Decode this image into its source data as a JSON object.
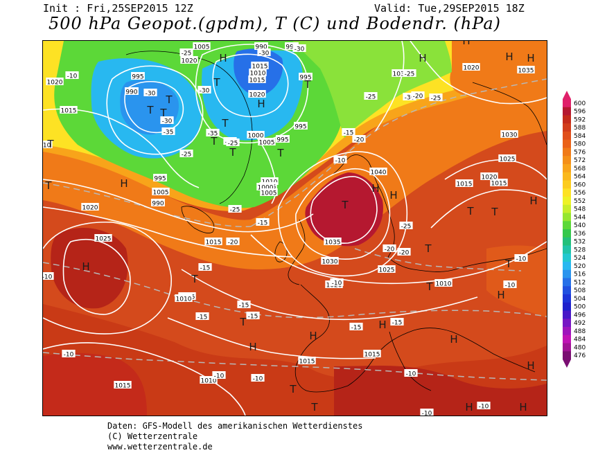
{
  "header": {
    "init": "Init : Fri,25SEP2015 12Z",
    "valid": "Valid: Tue,29SEP2015 18Z",
    "title": "500 hPa Geopot.(gpdm), T (C) und Bodendr. (hPa)"
  },
  "footer": {
    "line1": "Daten: GFS-Modell des amerikanischen Wetterdienstes",
    "line2": "(C) Wetterzentrale",
    "line3": "www.wetterzentrale.de"
  },
  "legend": {
    "values": [
      "600",
      "596",
      "592",
      "588",
      "584",
      "580",
      "576",
      "572",
      "568",
      "564",
      "560",
      "556",
      "552",
      "548",
      "544",
      "540",
      "536",
      "532",
      "528",
      "524",
      "520",
      "516",
      "512",
      "508",
      "504",
      "500",
      "496",
      "492",
      "488",
      "484",
      "480",
      "476"
    ],
    "colors": [
      "#e0206a",
      "#b51830",
      "#c42a1a",
      "#d23c1a",
      "#e04e1a",
      "#ea6218",
      "#f07a18",
      "#f48f18",
      "#f8a41a",
      "#fab81c",
      "#fccc1e",
      "#fde224",
      "#eef226",
      "#c8ee2a",
      "#96e630",
      "#5cd838",
      "#34c84c",
      "#22c07a",
      "#20c4a8",
      "#22c8d0",
      "#28b8f0",
      "#2a94ee",
      "#2670e8",
      "#2050e0",
      "#1c34d8",
      "#1e20cc",
      "#4818c8",
      "#7616c4",
      "#9e14bc",
      "#c012b4",
      "#a01294",
      "#7a0e72"
    ]
  },
  "map": {
    "pressure_labels": [
      "1005",
      "990",
      "995",
      "1020",
      "1015",
      "995",
      "990",
      "1010",
      "1015",
      "1020",
      "995",
      "995",
      "1035",
      "1020",
      "1035",
      "1020",
      "1015",
      "995",
      "1005",
      "990",
      "1000",
      "1005",
      "1010",
      "1005",
      "995",
      "1000",
      "1005",
      "1030",
      "1025",
      "1040",
      "1035",
      "1030",
      "1025",
      "1015",
      "1020",
      "1015",
      "1025",
      "1020",
      "1015",
      "1010",
      "1020",
      "1015",
      "1010",
      "1015",
      "1015",
      "1010",
      "1015"
    ],
    "temperature_labels": [
      "-30",
      "-35",
      "-30",
      "-30",
      "-30",
      "-25",
      "-30",
      "-25",
      "-35",
      "-30",
      "-25",
      "-25",
      "-30",
      "-25",
      "-20",
      "-25",
      "-15",
      "-10",
      "-20",
      "-10",
      "-25",
      "-15",
      "-10",
      "-10",
      "-15",
      "-20",
      "-20",
      "-20",
      "-25",
      "-15",
      "-15",
      "-10",
      "-15",
      "-15",
      "-15",
      "-10",
      "-10",
      "-10",
      "-10",
      "-10",
      "-10",
      "-10",
      "-10"
    ],
    "centre_marks": [
      "H",
      "H",
      "T",
      "T",
      "T",
      "H",
      "T",
      "T",
      "T",
      "T",
      "T",
      "T",
      "H",
      "T",
      "H",
      "H",
      "T",
      "H",
      "T",
      "H",
      "T",
      "T",
      "T",
      "T",
      "T",
      "T",
      "T",
      "H",
      "H",
      "H",
      "H",
      "H",
      "H",
      "H",
      "T",
      "T",
      "H",
      "H",
      "H",
      "H"
    ]
  }
}
